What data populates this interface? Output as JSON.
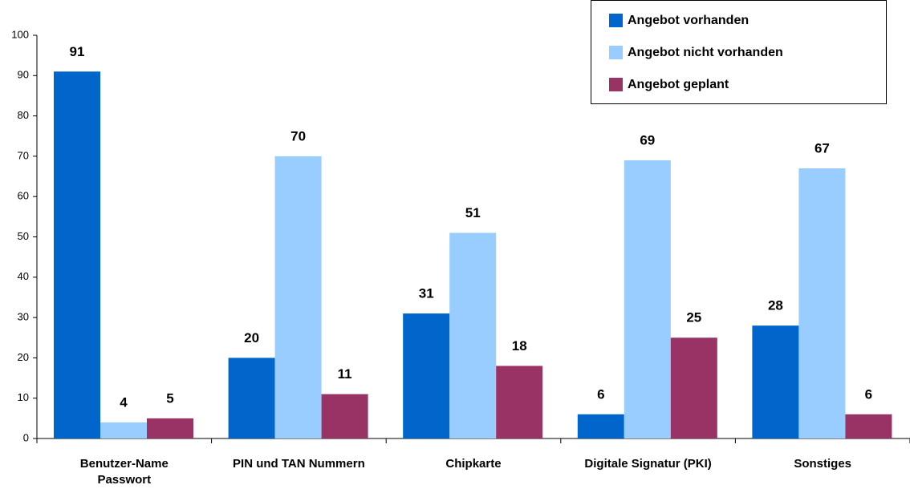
{
  "chart_data": {
    "type": "bar",
    "categories": [
      "Benutzer-Name\nPasswort",
      "PIN und TAN Nummern",
      "Chipkarte",
      "Digitale Signatur (PKI)",
      "Sonstiges"
    ],
    "series": [
      {
        "name": "Angebot vorhanden",
        "color": "#0066cc",
        "values": [
          91,
          20,
          31,
          6,
          28
        ]
      },
      {
        "name": "Angebot nicht vorhanden",
        "color": "#99ccff",
        "values": [
          4,
          70,
          51,
          69,
          67
        ]
      },
      {
        "name": "Angebot geplant",
        "color": "#993366",
        "values": [
          5,
          11,
          18,
          25,
          6
        ]
      }
    ],
    "ylim": [
      0,
      100
    ],
    "yticks": [
      0,
      10,
      20,
      30,
      40,
      50,
      60,
      70,
      80,
      90,
      100
    ],
    "grid": false,
    "legend": "top-right"
  }
}
